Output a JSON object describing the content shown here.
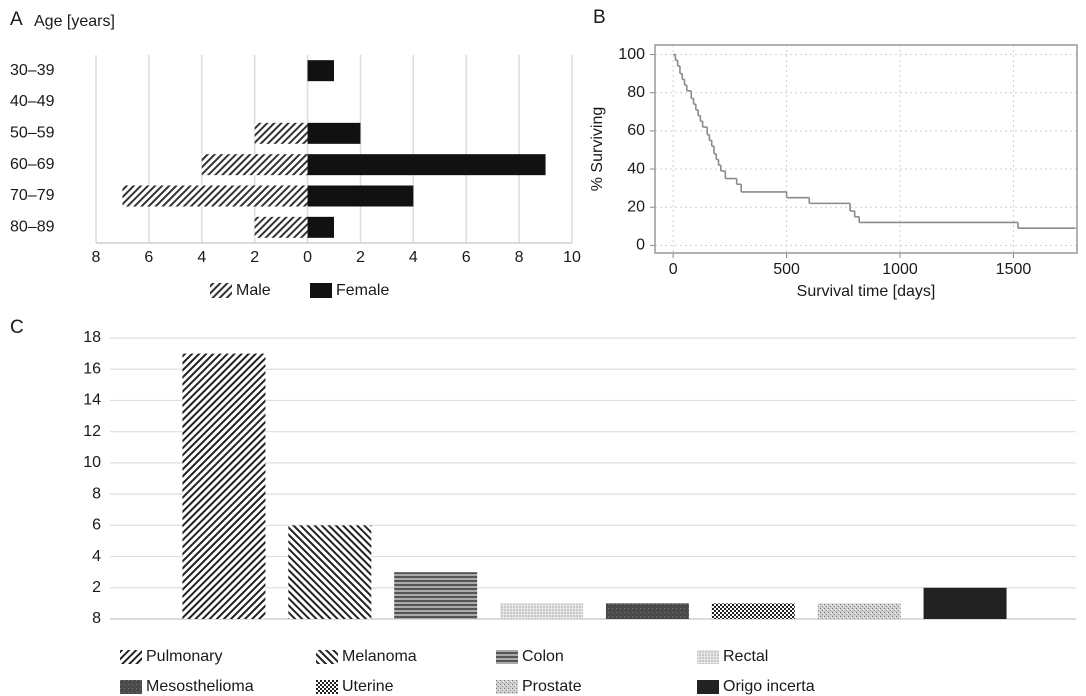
{
  "chart_data": [
    {
      "type": "bar",
      "orientation": "horizontal",
      "panel_label": "A",
      "title": "Age [years]",
      "categories": [
        "30–39",
        "40–49",
        "50–59",
        "60–69",
        "70–79",
        "80–89"
      ],
      "series": [
        {
          "name": "Male",
          "pattern": "diagonal",
          "color": "#333333",
          "values": [
            0,
            0,
            -2,
            -4,
            -7,
            -2
          ]
        },
        {
          "name": "Female",
          "pattern": "solid",
          "color": "#111111",
          "values": [
            1,
            0,
            2,
            9,
            4,
            1
          ]
        }
      ],
      "xlim": [
        -8,
        10
      ],
      "xticks": [
        {
          "value": -8,
          "label": "8"
        },
        {
          "value": -6,
          "label": "6"
        },
        {
          "value": -4,
          "label": "4"
        },
        {
          "value": -2,
          "label": "2"
        },
        0,
        2,
        4,
        6,
        8,
        10
      ],
      "grid": true,
      "legend": "bottom"
    },
    {
      "type": "line",
      "step": "post",
      "panel_label": "B",
      "xlabel": "Survival time [days]",
      "ylabel": "% Surviving",
      "x": [
        0,
        10,
        20,
        30,
        40,
        50,
        60,
        80,
        90,
        100,
        110,
        120,
        130,
        150,
        160,
        170,
        180,
        190,
        200,
        210,
        230,
        280,
        300,
        500,
        600,
        780,
        800,
        820,
        1520,
        1772
      ],
      "values": [
        100,
        97,
        94,
        90,
        87,
        84,
        81,
        77,
        74,
        71,
        68,
        65,
        62,
        58,
        55,
        52,
        48,
        45,
        42,
        39,
        35,
        32,
        28,
        25,
        22,
        18,
        15,
        12,
        9,
        9
      ],
      "color": "#8a8a8a",
      "xlim": [
        -80,
        1780
      ],
      "xticks": [
        0,
        500,
        1000,
        1500
      ],
      "ylim": [
        -4,
        105
      ],
      "yticks": [
        0,
        20,
        40,
        60,
        80,
        100
      ],
      "grid": true
    },
    {
      "type": "bar",
      "orientation": "vertical",
      "panel_label": "C",
      "categories": [
        "Pulmonary",
        "Melanoma",
        "Colon",
        "Rectal",
        "Mesosthelioma",
        "Uterine",
        "Prostate",
        "Origo incerta"
      ],
      "values": [
        17,
        6,
        3,
        1,
        1,
        1,
        1,
        2
      ],
      "patterns": [
        "diagonal",
        "diagonal-back",
        "horizontal",
        "dots",
        "grid-dark",
        "checker",
        "speckle",
        "solid"
      ],
      "color": "#222222",
      "ylim": [
        0,
        18
      ],
      "yticks": [
        2,
        4,
        6,
        8,
        10,
        12,
        14,
        16,
        18
      ],
      "y_origin_label": "8",
      "grid": true,
      "legend": "bottom"
    }
  ]
}
